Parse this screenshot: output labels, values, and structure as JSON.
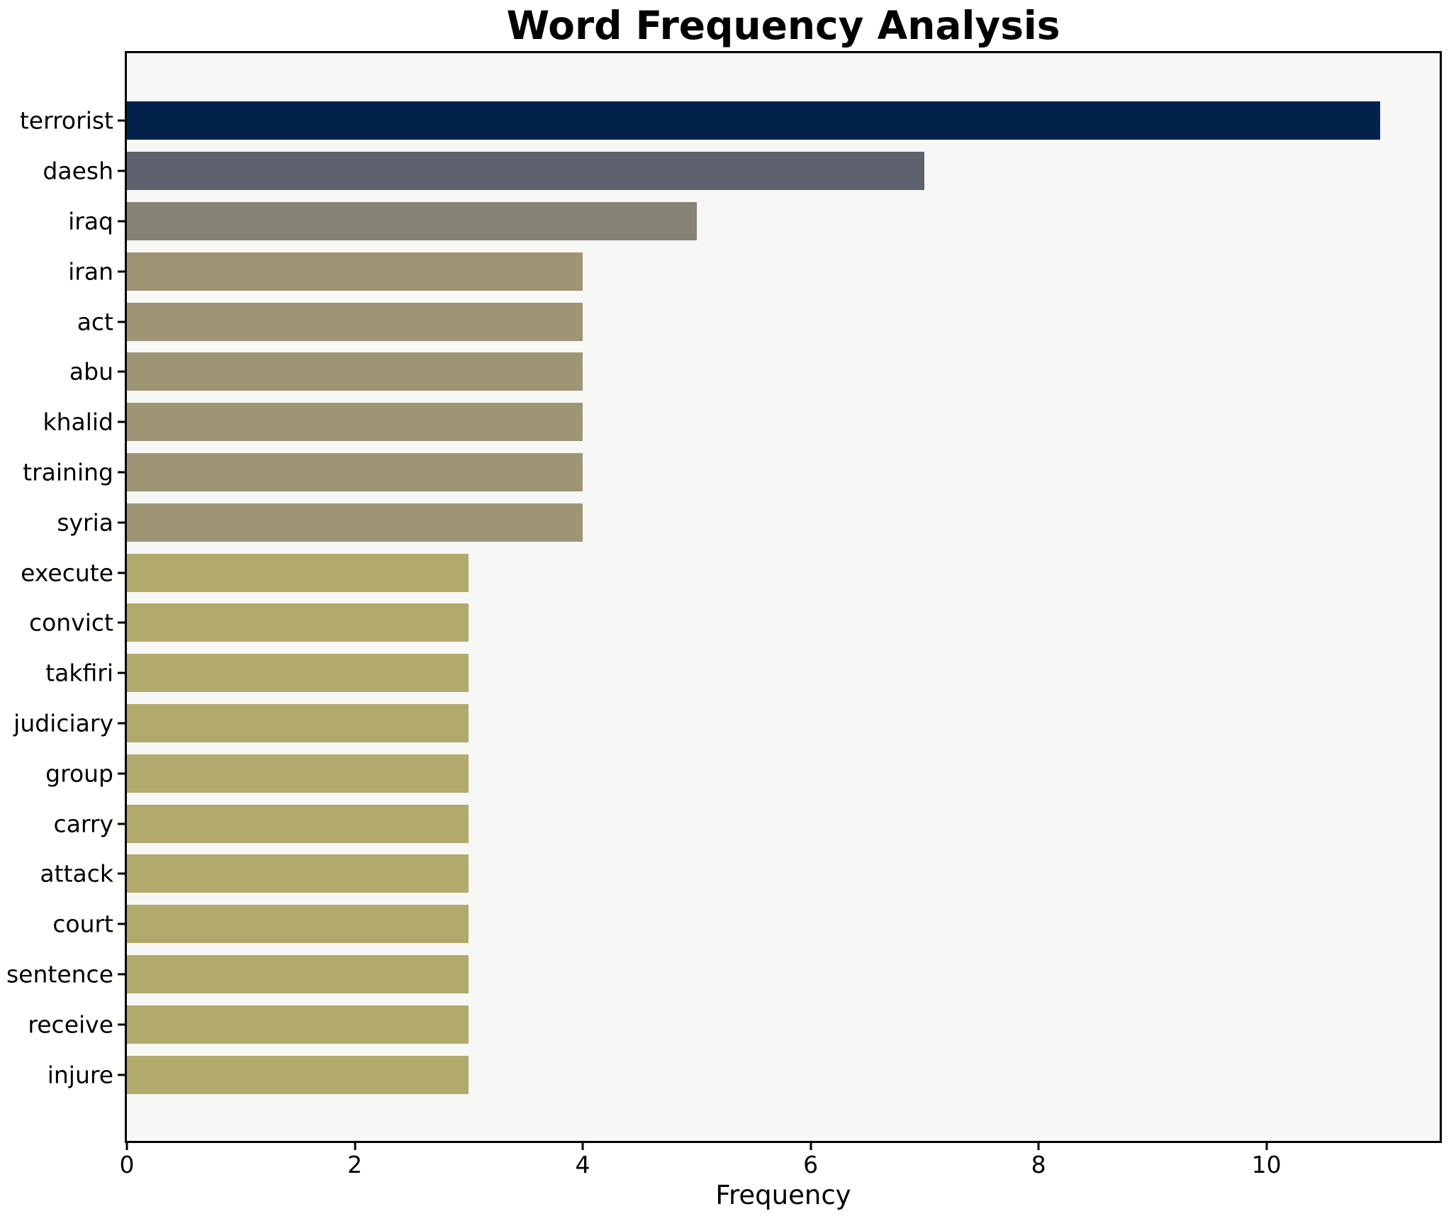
{
  "title": "Word Frequency Analysis",
  "xlabel": "Frequency",
  "chart_data": {
    "type": "bar",
    "orientation": "horizontal",
    "title": "Word Frequency Analysis",
    "xlabel": "Frequency",
    "ylabel": "",
    "categories": [
      "terrorist",
      "daesh",
      "iraq",
      "iran",
      "act",
      "abu",
      "khalid",
      "training",
      "syria",
      "execute",
      "convict",
      "takfiri",
      "judiciary",
      "group",
      "carry",
      "attack",
      "court",
      "sentence",
      "receive",
      "injure"
    ],
    "values": [
      11,
      7,
      5,
      4,
      4,
      4,
      4,
      4,
      4,
      3,
      3,
      3,
      3,
      3,
      3,
      3,
      3,
      3,
      3,
      3
    ],
    "bar_colors": [
      "#02224c",
      "#5d626e",
      "#868276",
      "#9d9574",
      "#9d9574",
      "#9d9574",
      "#9d9574",
      "#9d9574",
      "#9d9574",
      "#b2a96c",
      "#b2a96c",
      "#b2a96c",
      "#b2a96c",
      "#b2a96c",
      "#b2a96c",
      "#b2a96c",
      "#b2a96c",
      "#b2a96c",
      "#b2a96c",
      "#b2a96c"
    ],
    "xlim": [
      0,
      11.52
    ],
    "xticks": [
      0,
      2,
      4,
      6,
      8,
      10
    ],
    "grid": false,
    "legend_position": "none",
    "plot_background": "#f7f7f5",
    "figure_background": "#ffffff",
    "spine_color": "#000000",
    "bar_height_fraction": 0.76
  }
}
